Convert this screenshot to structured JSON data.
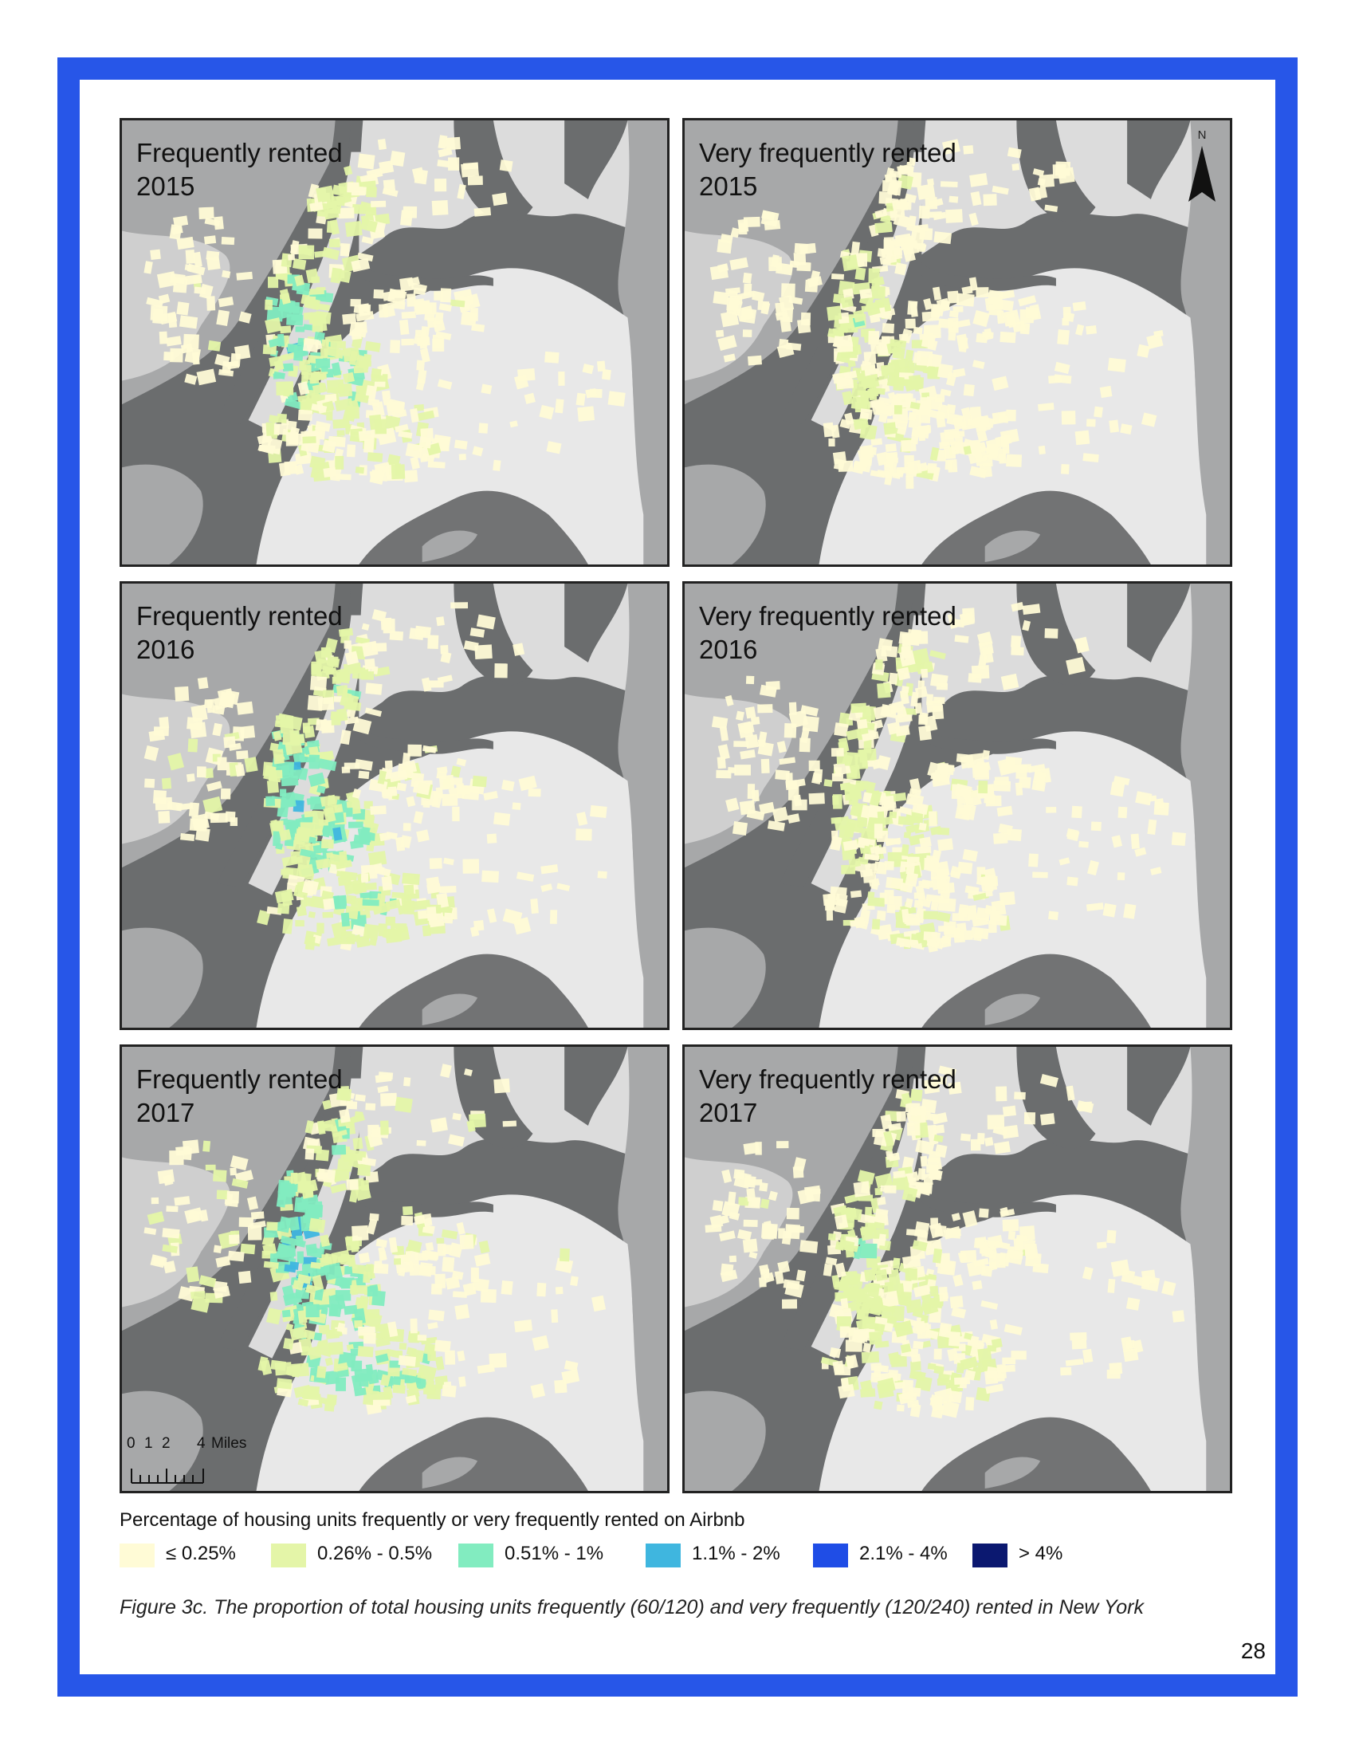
{
  "panels": [
    {
      "line1": "Frequently rented",
      "line2": "2015",
      "variant": "freq",
      "year": 2015
    },
    {
      "line1": "Very frequently rented",
      "line2": "2015",
      "variant": "very",
      "year": 2015
    },
    {
      "line1": "Frequently rented",
      "line2": "2016",
      "variant": "freq",
      "year": 2016
    },
    {
      "line1": "Very frequently rented",
      "line2": "2016",
      "variant": "very",
      "year": 2016
    },
    {
      "line1": "Frequently rented",
      "line2": "2017",
      "variant": "freq",
      "year": 2017
    },
    {
      "line1": "Very frequently rented",
      "line2": "2017",
      "variant": "very",
      "year": 2017
    }
  ],
  "north_arrow": {
    "label": "N"
  },
  "scale_bar": {
    "ticks": [
      "0",
      "1",
      "2",
      "4"
    ],
    "unit": "Miles"
  },
  "legend": {
    "title": "Percentage of housing units frequently or very frequently rented on Airbnb",
    "classes": [
      {
        "label": "≤ 0.25%",
        "color": "#fffbd6"
      },
      {
        "label": "0.26% - 0.5%",
        "color": "#e4f5a8"
      },
      {
        "label": "0.51% - 1%",
        "color": "#82ecc0"
      },
      {
        "label": "1.1% - 2%",
        "color": "#3fb6df"
      },
      {
        "label": "2.1% - 4%",
        "color": "#1f4de6"
      },
      {
        "label": "> 4%",
        "color": "#0b1870"
      }
    ]
  },
  "map_colors": {
    "water": "#6b6d6e",
    "land_far": "#a7a8a9",
    "land": "#dcdcdc",
    "land_near": "#e8e8e8"
  },
  "caption": "Figure 3c. The proportion of total housing units frequently (60/120) and very frequently (120/240) rented in New York",
  "page_number": "28"
}
